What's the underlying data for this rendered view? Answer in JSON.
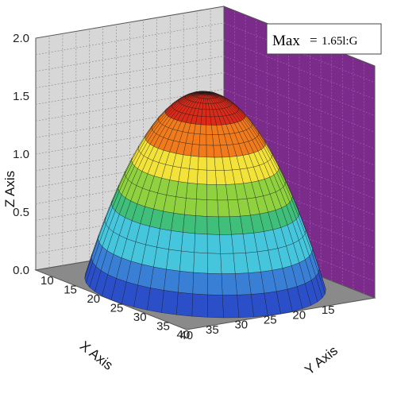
{
  "chart_data": {
    "type": "surface",
    "xlabel": "X Axis",
    "ylabel": "Y Axis",
    "zlabel": "Z Axis",
    "x_ticks": [
      "15",
      "20",
      "25",
      "30",
      "35",
      "40"
    ],
    "y_ticks": [
      "10",
      "15",
      "20",
      "25",
      "30",
      "35",
      "40"
    ],
    "z_ticks": [
      "0.0",
      "0.5",
      "1.0",
      "1.5",
      "2.0"
    ],
    "xlim": [
      10,
      45
    ],
    "ylim": [
      10,
      45
    ],
    "zlim": [
      0,
      2.0
    ],
    "peak": {
      "x": 27.5,
      "y": 27.5,
      "z": 1.65
    },
    "base_radius": 17.5,
    "color_bands": [
      "#2a4fc9",
      "#3a7fd6",
      "#45c6dc",
      "#3fbf7a",
      "#8fd13f",
      "#f2e23a",
      "#f07a1c",
      "#d92a1a"
    ],
    "annotation": {
      "label": "Max",
      "equals": "=",
      "value": "1.65l:G"
    },
    "colors": {
      "back_wall": "#d7d7d7",
      "side_wall": "#7b2c8a",
      "floor": "#8a8a8a",
      "wire": "#1a1a1a"
    }
  }
}
